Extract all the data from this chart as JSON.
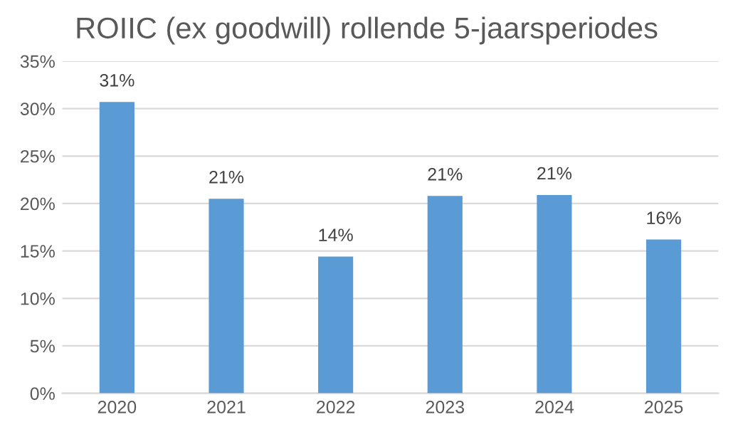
{
  "chart_data": {
    "type": "bar",
    "title": "ROIIC (ex goodwill) rollende 5-jaarsperiodes",
    "categories": [
      "2020",
      "2021",
      "2022",
      "2023",
      "2024",
      "2025"
    ],
    "values": [
      30.7,
      20.5,
      14.4,
      20.8,
      20.9,
      16.2
    ],
    "value_labels": [
      "31%",
      "21%",
      "14%",
      "21%",
      "21%",
      "16%"
    ],
    "color": "#5b9bd5",
    "ylim": [
      0,
      35
    ],
    "yticks": [
      {
        "value": 0,
        "label": "0%"
      },
      {
        "value": 5,
        "label": "5%"
      },
      {
        "value": 10,
        "label": "10%"
      },
      {
        "value": 15,
        "label": "15%"
      },
      {
        "value": 20,
        "label": "20%"
      },
      {
        "value": 25,
        "label": "25%"
      },
      {
        "value": 30,
        "label": "30%"
      },
      {
        "value": 35,
        "label": "35%"
      }
    ],
    "grid": "y",
    "legend": false
  }
}
